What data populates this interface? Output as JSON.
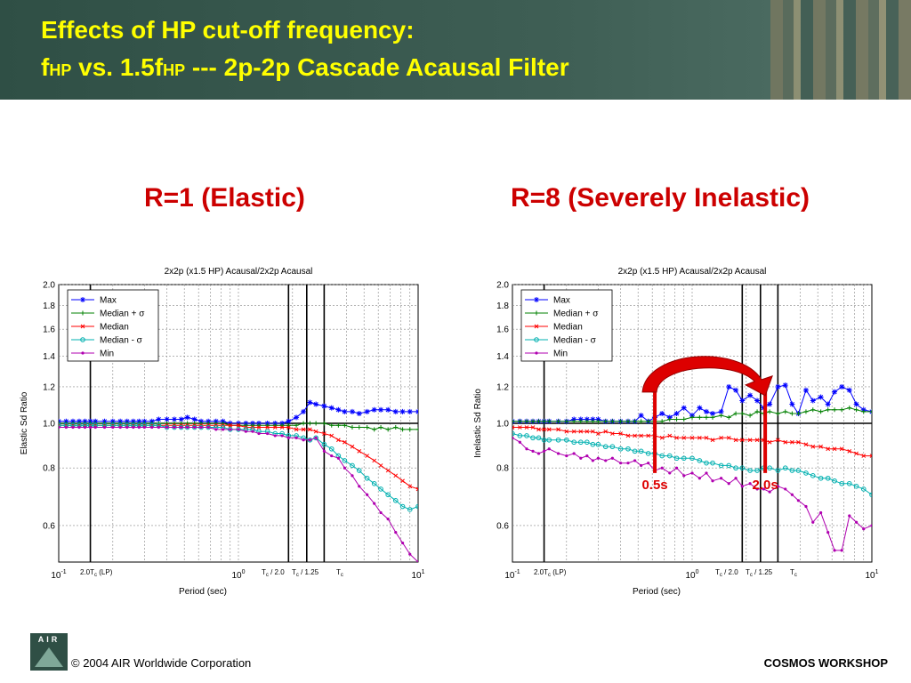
{
  "header": {
    "title_line1": "Effects of HP cut-off frequency:",
    "f1": "f",
    "hp1": "HP",
    "vs": " vs. 1.5f",
    "hp2": "HP",
    "rest": " --- 2p-2p Cascade Acausal Filter"
  },
  "subheadings": {
    "left": "R=1 (Elastic)",
    "right": "R=8 (Severely Inelastic)"
  },
  "annotations": {
    "marker_a": "0.5s",
    "marker_b": "2.0s"
  },
  "footer": {
    "logo": "AIR",
    "copyright": "© 2004 AIR Worldwide Corporation",
    "workshop": "COSMOS WORKSHOP"
  },
  "colors": {
    "title": "#ffff00",
    "subheading": "#cc0000",
    "max": "#0000ff",
    "median_plus": "#008000",
    "median": "#ff0000",
    "median_minus": "#00b0b0",
    "min": "#b000b0",
    "annotation": "#dd0000"
  },
  "chart_data": [
    {
      "type": "line",
      "title": "2x2p (x1.5 HP) Acausal/2x2p Acausal",
      "xlabel": "Period (sec)",
      "ylabel": "Elastic Sd Ratio",
      "xscale": "log",
      "yscale": "log",
      "xlim": [
        0.1,
        10
      ],
      "ylim": [
        0.5,
        2.0
      ],
      "yticks": [
        "0.6",
        "0.8",
        "1.0",
        "1.2",
        "1.4",
        "1.6",
        "1.8",
        "2.0"
      ],
      "x_major_ticks": [
        "10-1",
        "100",
        "101"
      ],
      "period_labels": [
        "2.0Tc (LP)",
        "Tc / 2.0",
        "Tc / 1.25",
        "Tc"
      ],
      "grid": true,
      "legend_position": "top-left",
      "x": [
        0.1,
        0.11,
        0.12,
        0.13,
        0.14,
        0.15,
        0.16,
        0.18,
        0.2,
        0.22,
        0.24,
        0.26,
        0.28,
        0.3,
        0.33,
        0.36,
        0.4,
        0.44,
        0.48,
        0.52,
        0.57,
        0.62,
        0.68,
        0.75,
        0.82,
        0.9,
        1.0,
        1.1,
        1.2,
        1.3,
        1.45,
        1.6,
        1.75,
        1.9,
        2.1,
        2.3,
        2.5,
        2.7,
        3.0,
        3.3,
        3.6,
        3.9,
        4.3,
        4.7,
        5.2,
        5.7,
        6.2,
        6.8,
        7.5,
        8.2,
        9.0,
        10.0
      ],
      "series": [
        {
          "name": "Max",
          "values": [
            1.01,
            1.01,
            1.01,
            1.01,
            1.01,
            1.01,
            1.01,
            1.01,
            1.01,
            1.01,
            1.01,
            1.01,
            1.01,
            1.01,
            1.01,
            1.02,
            1.02,
            1.02,
            1.02,
            1.03,
            1.02,
            1.01,
            1.01,
            1.01,
            1.01,
            1.0,
            1.0,
            1.0,
            1.0,
            1.0,
            1.0,
            1.0,
            1.0,
            1.01,
            1.03,
            1.06,
            1.11,
            1.1,
            1.09,
            1.08,
            1.07,
            1.06,
            1.06,
            1.05,
            1.06,
            1.07,
            1.07,
            1.07,
            1.06,
            1.06,
            1.06,
            1.06
          ]
        },
        {
          "name": "Median + σ",
          "values": [
            1.0,
            1.0,
            1.0,
            1.0,
            1.0,
            1.0,
            1.0,
            1.0,
            1.0,
            1.0,
            1.0,
            1.0,
            1.0,
            1.0,
            1.0,
            1.0,
            1.0,
            1.0,
            1.0,
            1.0,
            1.0,
            1.0,
            1.0,
            1.0,
            1.0,
            0.99,
            0.99,
            0.99,
            0.99,
            0.99,
            0.99,
            0.99,
            0.99,
            0.99,
            0.99,
            1.0,
            1.0,
            1.0,
            1.0,
            0.99,
            0.99,
            0.99,
            0.98,
            0.98,
            0.98,
            0.97,
            0.98,
            0.97,
            0.98,
            0.97,
            0.97,
            0.97
          ]
        },
        {
          "name": "Median",
          "values": [
            0.99,
            0.99,
            0.99,
            0.99,
            0.99,
            0.99,
            0.99,
            0.99,
            0.99,
            0.99,
            0.99,
            0.99,
            0.99,
            0.99,
            0.99,
            0.99,
            0.99,
            0.99,
            0.99,
            0.99,
            0.99,
            0.99,
            0.99,
            0.99,
            0.99,
            0.99,
            0.99,
            0.98,
            0.98,
            0.98,
            0.98,
            0.98,
            0.98,
            0.98,
            0.97,
            0.97,
            0.97,
            0.96,
            0.95,
            0.94,
            0.92,
            0.91,
            0.89,
            0.87,
            0.85,
            0.83,
            0.81,
            0.79,
            0.77,
            0.75,
            0.73,
            0.72
          ]
        },
        {
          "name": "Median - σ",
          "values": [
            0.99,
            0.99,
            0.99,
            0.99,
            0.99,
            0.99,
            0.99,
            0.99,
            0.99,
            0.99,
            0.99,
            0.99,
            0.99,
            0.99,
            0.99,
            0.99,
            0.98,
            0.98,
            0.98,
            0.98,
            0.98,
            0.98,
            0.98,
            0.98,
            0.98,
            0.97,
            0.97,
            0.97,
            0.97,
            0.96,
            0.96,
            0.95,
            0.95,
            0.94,
            0.94,
            0.93,
            0.92,
            0.93,
            0.9,
            0.88,
            0.85,
            0.83,
            0.81,
            0.79,
            0.76,
            0.74,
            0.72,
            0.7,
            0.68,
            0.66,
            0.65,
            0.66
          ]
        },
        {
          "name": "Min",
          "values": [
            0.98,
            0.98,
            0.98,
            0.98,
            0.98,
            0.98,
            0.98,
            0.98,
            0.98,
            0.98,
            0.98,
            0.98,
            0.98,
            0.98,
            0.98,
            0.98,
            0.98,
            0.98,
            0.98,
            0.98,
            0.98,
            0.98,
            0.98,
            0.97,
            0.97,
            0.97,
            0.97,
            0.96,
            0.96,
            0.95,
            0.95,
            0.94,
            0.94,
            0.93,
            0.93,
            0.92,
            0.92,
            0.93,
            0.87,
            0.85,
            0.84,
            0.8,
            0.77,
            0.73,
            0.7,
            0.67,
            0.64,
            0.62,
            0.58,
            0.55,
            0.52,
            0.5
          ]
        }
      ]
    },
    {
      "type": "line",
      "title": "2x2p (x1.5 HP) Acausal/2x2p Acausal",
      "xlabel": "Period (sec)",
      "ylabel": "Inelastic Sd Ratio",
      "xscale": "log",
      "yscale": "log",
      "xlim": [
        0.1,
        10
      ],
      "ylim": [
        0.5,
        2.0
      ],
      "yticks": [
        "0.6",
        "0.8",
        "1.0",
        "1.2",
        "1.4",
        "1.6",
        "1.8",
        "2.0"
      ],
      "x_major_ticks": [
        "10-1",
        "100",
        "101"
      ],
      "period_labels": [
        "2.0Tc (LP)",
        "Tc / 2.0",
        "Tc / 1.25",
        "Tc"
      ],
      "grid": true,
      "legend_position": "top-left",
      "x": [
        0.1,
        0.11,
        0.12,
        0.13,
        0.14,
        0.15,
        0.16,
        0.18,
        0.2,
        0.22,
        0.24,
        0.26,
        0.28,
        0.3,
        0.33,
        0.36,
        0.4,
        0.44,
        0.48,
        0.52,
        0.57,
        0.62,
        0.68,
        0.75,
        0.82,
        0.9,
        1.0,
        1.1,
        1.2,
        1.3,
        1.45,
        1.6,
        1.75,
        1.9,
        2.1,
        2.3,
        2.5,
        2.7,
        3.0,
        3.3,
        3.6,
        3.9,
        4.3,
        4.7,
        5.2,
        5.7,
        6.2,
        6.8,
        7.5,
        8.2,
        9.0,
        10.0
      ],
      "series": [
        {
          "name": "Max",
          "values": [
            1.01,
            1.01,
            1.01,
            1.01,
            1.01,
            1.01,
            1.01,
            1.01,
            1.01,
            1.02,
            1.02,
            1.02,
            1.02,
            1.02,
            1.01,
            1.01,
            1.01,
            1.01,
            1.01,
            1.04,
            1.01,
            1.03,
            1.05,
            1.03,
            1.05,
            1.08,
            1.04,
            1.08,
            1.06,
            1.05,
            1.06,
            1.2,
            1.18,
            1.12,
            1.15,
            1.12,
            1.08,
            1.1,
            1.2,
            1.21,
            1.1,
            1.05,
            1.18,
            1.12,
            1.14,
            1.1,
            1.17,
            1.2,
            1.18,
            1.1,
            1.07,
            1.06
          ]
        },
        {
          "name": "Median + σ",
          "values": [
            1.01,
            1.01,
            1.01,
            1.01,
            1.01,
            1.01,
            1.01,
            1.01,
            1.01,
            1.01,
            1.01,
            1.01,
            1.01,
            1.01,
            1.01,
            1.01,
            1.01,
            1.01,
            1.01,
            1.01,
            1.01,
            1.01,
            1.01,
            1.02,
            1.02,
            1.02,
            1.03,
            1.03,
            1.03,
            1.03,
            1.04,
            1.03,
            1.05,
            1.05,
            1.04,
            1.06,
            1.05,
            1.06,
            1.05,
            1.06,
            1.05,
            1.05,
            1.06,
            1.07,
            1.06,
            1.07,
            1.07,
            1.07,
            1.08,
            1.07,
            1.06,
            1.06
          ]
        },
        {
          "name": "Median",
          "values": [
            0.98,
            0.98,
            0.98,
            0.98,
            0.97,
            0.97,
            0.97,
            0.97,
            0.96,
            0.96,
            0.96,
            0.96,
            0.96,
            0.95,
            0.96,
            0.95,
            0.95,
            0.94,
            0.94,
            0.94,
            0.94,
            0.94,
            0.93,
            0.94,
            0.93,
            0.93,
            0.93,
            0.93,
            0.93,
            0.92,
            0.93,
            0.93,
            0.92,
            0.92,
            0.92,
            0.92,
            0.92,
            0.91,
            0.92,
            0.91,
            0.91,
            0.91,
            0.9,
            0.89,
            0.89,
            0.88,
            0.88,
            0.88,
            0.87,
            0.86,
            0.85,
            0.85
          ]
        },
        {
          "name": "Median - σ",
          "values": [
            0.95,
            0.94,
            0.94,
            0.93,
            0.93,
            0.92,
            0.92,
            0.92,
            0.92,
            0.91,
            0.91,
            0.91,
            0.9,
            0.9,
            0.89,
            0.89,
            0.88,
            0.88,
            0.87,
            0.87,
            0.86,
            0.86,
            0.85,
            0.85,
            0.84,
            0.84,
            0.84,
            0.83,
            0.82,
            0.82,
            0.81,
            0.81,
            0.8,
            0.8,
            0.79,
            0.79,
            0.8,
            0.8,
            0.79,
            0.8,
            0.79,
            0.79,
            0.78,
            0.77,
            0.76,
            0.76,
            0.75,
            0.74,
            0.74,
            0.73,
            0.72,
            0.7
          ]
        },
        {
          "name": "Min",
          "values": [
            0.93,
            0.91,
            0.88,
            0.87,
            0.86,
            0.87,
            0.88,
            0.86,
            0.85,
            0.86,
            0.84,
            0.85,
            0.83,
            0.84,
            0.83,
            0.84,
            0.82,
            0.82,
            0.83,
            0.81,
            0.82,
            0.79,
            0.8,
            0.78,
            0.8,
            0.77,
            0.78,
            0.76,
            0.78,
            0.75,
            0.76,
            0.74,
            0.76,
            0.73,
            0.74,
            0.72,
            0.72,
            0.71,
            0.73,
            0.72,
            0.7,
            0.68,
            0.66,
            0.61,
            0.64,
            0.58,
            0.53,
            0.53,
            0.63,
            0.61,
            0.59,
            0.6
          ]
        }
      ]
    }
  ]
}
